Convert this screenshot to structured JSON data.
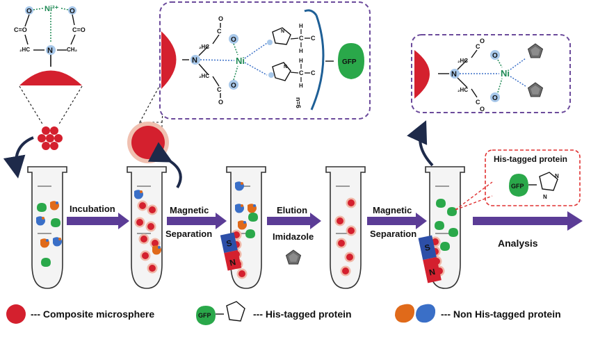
{
  "steps": {
    "incubation": "Incubation",
    "magnetic1": "Magnetic",
    "separation1": "Separation",
    "elution": "Elution",
    "imidazole": "Imidazole",
    "magnetic2": "Magnetic",
    "separation2": "Separation",
    "analysis": "Analysis"
  },
  "chem": {
    "ni2": "Ni²⁺",
    "ni": "Ni",
    "n": "N",
    "o": "O",
    "c_eq_o": "C=O",
    "h2c": "₂HC",
    "ch2": "CH₂",
    "c": "C",
    "h": "H",
    "n_eq_6": "n=6",
    "gfp": "GFP"
  },
  "magnet": {
    "s": "S",
    "n": "N"
  },
  "callout": {
    "title": "His-tagged protein",
    "gfp": "GFP"
  },
  "legend": {
    "microsphere": "--- Composite microsphere",
    "his": "--- His-tagged protein",
    "non_his": "--- Non His-tagged protein",
    "gfp": "GFP"
  },
  "colors": {
    "microsphere": "#d4202e",
    "arrow": "#5b3c96",
    "gfp": "#2aa84a",
    "orange_protein": "#e06a1a",
    "blue_protein": "#3a6fc7",
    "ni": "#1f8a55",
    "dashed_box": "#6b4a9b",
    "callout": "#e03030"
  }
}
